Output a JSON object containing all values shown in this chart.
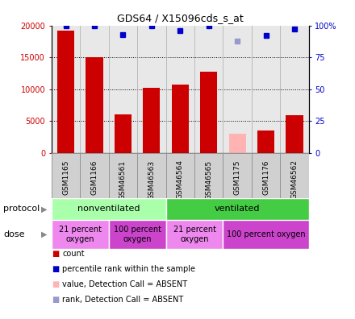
{
  "title": "GDS64 / X15096cds_s_at",
  "samples": [
    "GSM1165",
    "GSM1166",
    "GSM46561",
    "GSM46563",
    "GSM46564",
    "GSM46565",
    "GSM1175",
    "GSM1176",
    "GSM46562"
  ],
  "counts": [
    19200,
    15000,
    6100,
    10300,
    10800,
    12800,
    null,
    3500,
    6000
  ],
  "counts_absent": [
    null,
    null,
    null,
    null,
    null,
    null,
    3100,
    null,
    null
  ],
  "percentile_ranks": [
    100,
    100,
    93,
    100,
    96,
    100,
    null,
    92,
    97
  ],
  "percentile_ranks_absent": [
    null,
    null,
    null,
    null,
    null,
    null,
    88,
    null,
    null
  ],
  "bar_color": "#cc0000",
  "bar_absent_color": "#ffb3b3",
  "dot_color": "#0000cc",
  "dot_absent_color": "#9999cc",
  "ylim_left": [
    0,
    20000
  ],
  "ylim_right": [
    0,
    100
  ],
  "yticks_left": [
    0,
    5000,
    10000,
    15000,
    20000
  ],
  "ytick_labels_left": [
    "0",
    "5000",
    "10000",
    "15000",
    "20000"
  ],
  "yticks_right": [
    0,
    25,
    50,
    75,
    100
  ],
  "ytick_labels_right": [
    "0",
    "25",
    "50",
    "75",
    "100%"
  ],
  "protocol_groups": [
    {
      "label": "nonventilated",
      "start": 0,
      "end": 4,
      "color": "#aaffaa"
    },
    {
      "label": "ventilated",
      "start": 4,
      "end": 9,
      "color": "#44cc44"
    }
  ],
  "dose_groups": [
    {
      "label": "21 percent\noxygen",
      "start": 0,
      "end": 2,
      "color": "#ee88ee"
    },
    {
      "label": "100 percent\noxygen",
      "start": 2,
      "end": 4,
      "color": "#cc44cc"
    },
    {
      "label": "21 percent\noxygen",
      "start": 4,
      "end": 6,
      "color": "#ee88ee"
    },
    {
      "label": "100 percent oxygen",
      "start": 6,
      "end": 9,
      "color": "#cc44cc"
    }
  ],
  "legend_items": [
    {
      "label": "count",
      "color": "#cc0000"
    },
    {
      "label": "percentile rank within the sample",
      "color": "#0000cc"
    },
    {
      "label": "value, Detection Call = ABSENT",
      "color": "#ffb3b3"
    },
    {
      "label": "rank, Detection Call = ABSENT",
      "color": "#9999cc"
    }
  ],
  "left_axis_color": "#cc0000",
  "right_axis_color": "#0000cc",
  "label_protocol": "protocol",
  "label_dose": "dose",
  "plot_bg_color": "#e8e8e8",
  "xtick_bg_color": "#d0d0d0"
}
